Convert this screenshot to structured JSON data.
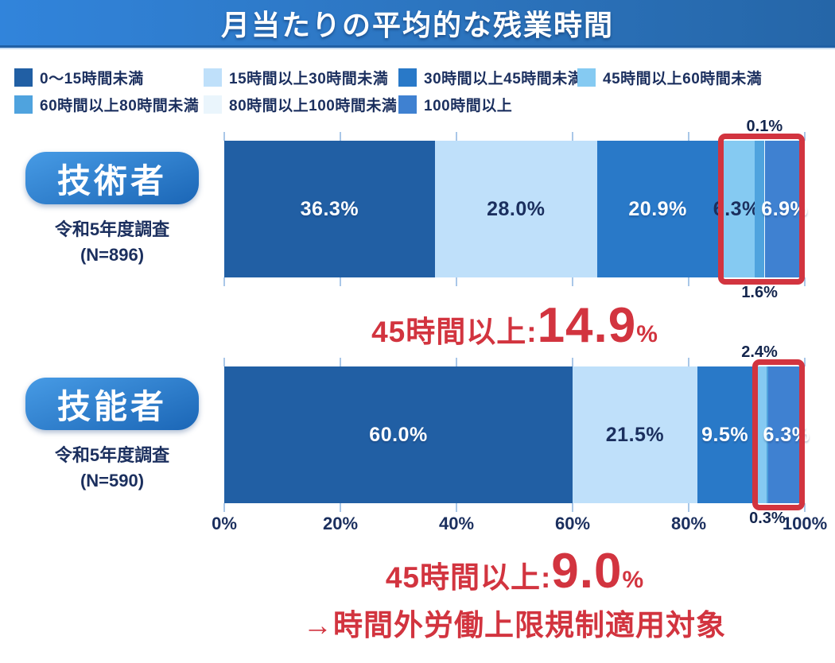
{
  "title": "月当たりの平均的な残業時間",
  "colors": {
    "accent_red": "#D2343F",
    "navy_text": "#1B2F5E",
    "banner_left": "#3184DB",
    "banner_right": "#2566A8",
    "badge_top": "#479BE5",
    "badge_bottom": "#1B66B6",
    "tick": "#A9C7E8"
  },
  "legend": {
    "items": [
      {
        "label": "0〜15時間未満",
        "color": "#215FA4"
      },
      {
        "label": "15時間以上30時間未満",
        "color": "#BFE0FA"
      },
      {
        "label": "30時間以上45時間未満",
        "color": "#2979C8"
      },
      {
        "label": "45時間以上60時間未満",
        "color": "#85CAF2"
      },
      {
        "label": "60時間以上80時間未満",
        "color": "#4FA3DE"
      },
      {
        "label": "80時間以上100時間未満",
        "color": "#EAF5FC"
      },
      {
        "label": "100時間以上",
        "color": "#3F81D1"
      }
    ]
  },
  "axis": {
    "tick_labels": [
      "0%",
      "20%",
      "40%",
      "60%",
      "80%",
      "100%"
    ]
  },
  "chart_data": [
    {
      "type": "bar",
      "stacked": true,
      "orientation": "horizontal",
      "group_label": "技術者",
      "survey_line1": "令和5年度調査",
      "survey_line2": "(N=896)",
      "categories": [
        "0〜15時間未満",
        "15時間以上30時間未満",
        "30時間以上45時間未満",
        "45時間以上60時間未満",
        "60時間以上80時間未満",
        "80時間以上100時間未満",
        "100時間以上"
      ],
      "values": [
        36.3,
        28.0,
        20.9,
        6.3,
        1.6,
        0.1,
        6.9
      ],
      "xlim": [
        0,
        100
      ],
      "highlight_start_index": 3,
      "callouts": [
        {
          "text": "0.1%",
          "segment_index": 5,
          "position": "top"
        },
        {
          "text": "1.6%",
          "segment_index": 4,
          "position": "bottom"
        }
      ],
      "summary": {
        "prefix": "45時間以上:",
        "value": "14.9",
        "unit": "%"
      }
    },
    {
      "type": "bar",
      "stacked": true,
      "orientation": "horizontal",
      "group_label": "技能者",
      "survey_line1": "令和5年度調査",
      "survey_line2": "(N=590)",
      "categories": [
        "0〜15時間未満",
        "15時間以上30時間未満",
        "30時間以上45時間未満",
        "45時間以上60時間未満",
        "60時間以上80時間未満",
        "80時間以上100時間未満",
        "100時間以上"
      ],
      "values": [
        60.0,
        21.5,
        9.5,
        2.4,
        0.3,
        0.0,
        6.3
      ],
      "xlim": [
        0,
        100
      ],
      "highlight_start_index": 3,
      "callouts": [
        {
          "text": "2.4%",
          "segment_index": 3,
          "position": "top"
        },
        {
          "text": "0.3%",
          "segment_index": 4,
          "position": "bottom"
        }
      ],
      "summary": {
        "prefix": "45時間以上:",
        "value": "9.0",
        "unit": "%",
        "note": "→時間外労働上限規制適用対象"
      }
    }
  ]
}
